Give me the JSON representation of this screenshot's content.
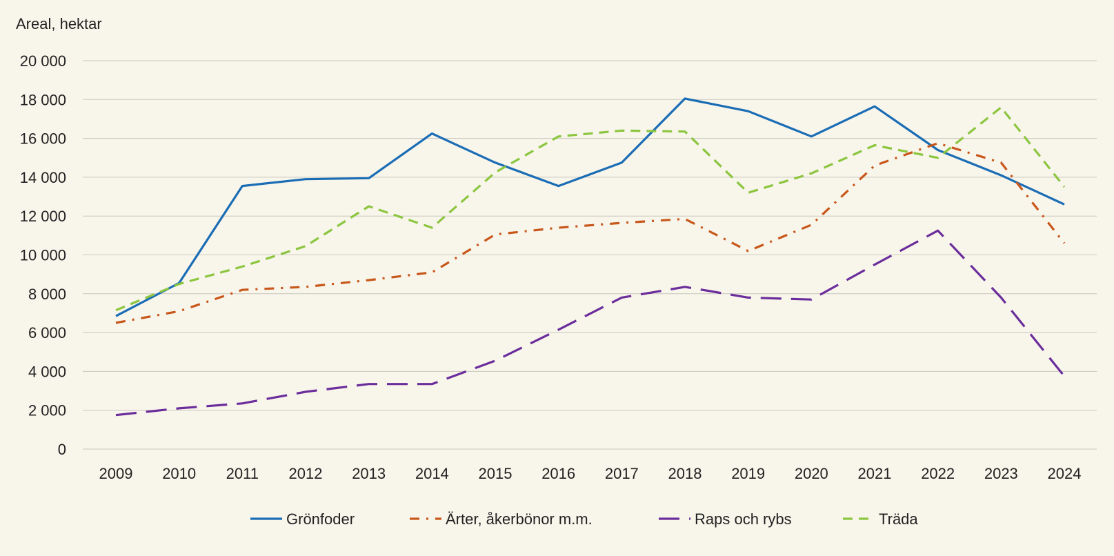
{
  "chart_data": {
    "type": "line",
    "title": "",
    "xlabel": "",
    "ylabel": "Areal, hektar",
    "x": [
      "2009",
      "2010",
      "2011",
      "2012",
      "2013",
      "2014",
      "2015",
      "2016",
      "2017",
      "2018",
      "2019",
      "2020",
      "2021",
      "2022",
      "2023",
      "2024"
    ],
    "ylim": [
      0,
      20000
    ],
    "yticks": [
      0,
      2000,
      4000,
      6000,
      8000,
      10000,
      12000,
      14000,
      16000,
      18000,
      20000
    ],
    "ytick_labels": [
      "0",
      "2 000",
      "4 000",
      "6 000",
      "8 000",
      "10 000",
      "12 000",
      "14 000",
      "16 000",
      "18 000",
      "20 000"
    ],
    "grid": "horizontal",
    "legend": "bottom",
    "series": [
      {
        "name": "Grönfoder",
        "color": "#1a6db5",
        "dash": "solid",
        "values": [
          6850,
          8550,
          13550,
          13900,
          13950,
          16250,
          14750,
          13550,
          14750,
          18050,
          17400,
          16100,
          17650,
          15400,
          14100,
          12600
        ]
      },
      {
        "name": "Ärter, åkerbönor m.m.",
        "color": "#c8571a",
        "dash": "dashdot",
        "values": [
          6500,
          7100,
          8200,
          8350,
          8700,
          9100,
          11050,
          11400,
          11650,
          11850,
          10200,
          11550,
          14600,
          15750,
          14750,
          10600
        ]
      },
      {
        "name": "Raps och rybs",
        "color": "#6a2d9b",
        "dash": "longdash",
        "values": [
          1750,
          2100,
          2350,
          2950,
          3350,
          3350,
          4550,
          6150,
          7800,
          8350,
          7800,
          7700,
          9500,
          11250,
          7800,
          3750
        ]
      },
      {
        "name": "Träda",
        "color": "#8cc63f",
        "dash": "dashed",
        "values": [
          7150,
          8500,
          9400,
          10450,
          12500,
          11400,
          14250,
          16100,
          16400,
          16350,
          13200,
          14200,
          15650,
          15000,
          17600,
          13500
        ]
      }
    ]
  }
}
